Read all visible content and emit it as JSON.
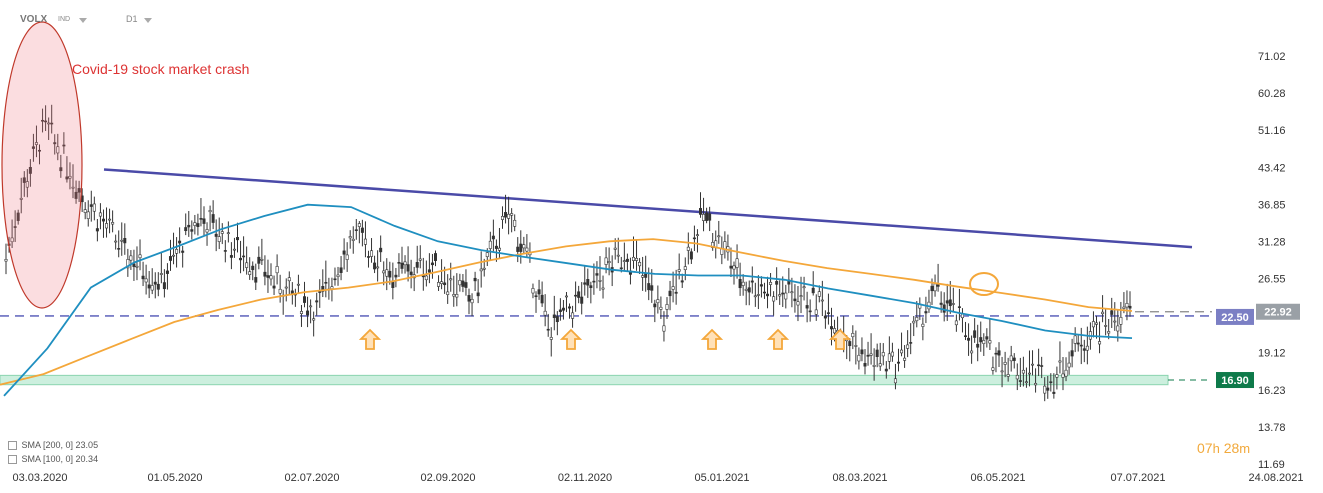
{
  "header": {
    "symbol": "VOLX",
    "type": "IND",
    "timeframe": "D1"
  },
  "legend": [
    {
      "label": "SMA [200, 0] 23.05",
      "color": "#f4a73a"
    },
    {
      "label": "SMA [100, 0] 20.34",
      "color": "#1f8fc0"
    }
  ],
  "timer": {
    "hours": "07",
    "h_unit": "h",
    "minutes": "28",
    "m_unit": "m"
  },
  "annotation": {
    "text": "Covid-19 stock market crash"
  },
  "colors": {
    "trendline": "#4a4aa8",
    "sma200": "#f4a73a",
    "sma100": "#1f8fc0",
    "support_zone": "#7fd0a8",
    "candles": "#333333",
    "arrows": "#f4a73a",
    "crash_ellipse": "#c0392b"
  },
  "chart_data": {
    "type": "line",
    "title": "",
    "xlabel": "",
    "ylabel": "",
    "x_ticks": [
      "03.03.2020",
      "01.05.2020",
      "02.07.2020",
      "02.09.2020",
      "02.11.2020",
      "05.01.2021",
      "08.03.2021",
      "06.05.2021",
      "07.07.2021",
      "24.08.2021"
    ],
    "y_ticks": [
      "71.02",
      "60.28",
      "51.16",
      "43.42",
      "36.85",
      "31.28",
      "26.55",
      "19.12",
      "16.23",
      "13.78",
      "11.69"
    ],
    "y_scale": "log",
    "ylim": [
      11.69,
      80
    ],
    "price_labels": [
      {
        "value": "22.50",
        "bg": "#7b7fc4",
        "fg": "#ffffff"
      },
      {
        "value": "22.92",
        "bg": "#9aa0a6",
        "fg": "#ffffff"
      },
      {
        "value": "16.90",
        "bg": "#0e7a4a",
        "fg": "#ffffff"
      }
    ],
    "series": [
      {
        "name": "SMA [200, 0]",
        "values": [
          16.6,
          17.4,
          18.8,
          20.3,
          21.9,
          23.1,
          24.2,
          25.0,
          25.5,
          26.2,
          27.3,
          28.5,
          29.6,
          30.6,
          31.3,
          31.6,
          31.0,
          29.8,
          28.7,
          27.8,
          27.1,
          26.4,
          25.6,
          24.9,
          24.2,
          23.4,
          23.0
        ]
      },
      {
        "name": "SMA [100, 0]",
        "values": [
          15.8,
          19.5,
          25.5,
          28.5,
          30.6,
          33.0,
          35.0,
          36.8,
          36.4,
          33.5,
          31.3,
          30.1,
          29.2,
          28.4,
          27.6,
          27.1,
          26.9,
          26.9,
          26.4,
          25.4,
          24.6,
          23.8,
          22.8,
          22.0,
          21.1,
          20.6,
          20.4
        ]
      },
      {
        "name": "",
        "values": [
          29,
          52,
          38,
          30,
          26,
          35,
          30,
          26,
          23,
          32,
          27,
          28,
          24,
          35,
          21,
          25,
          30,
          22,
          35,
          26,
          25,
          24,
          19,
          18,
          25,
          20,
          18,
          17,
          21,
          23
        ]
      }
    ],
    "dates_sma": [
      "02.2020",
      "03.2020",
      "04.2020",
      "05.2020",
      "06.2020",
      "07.2020",
      "08.2020",
      "09.2020",
      "10.2020",
      "11.2020",
      "12.2020",
      "01.2021",
      "02.2021",
      "03.2021",
      "04.2021",
      "05.2021",
      "06.2021",
      "07.2021",
      "08.2021"
    ],
    "trendline": {
      "start": [
        "03.2020",
        43.0
      ],
      "end": [
        "08.2021",
        30.5
      ]
    },
    "support_level": 22.5,
    "support_zone": [
      16.6,
      17.3
    ],
    "arrows_at": [
      "08.2020",
      "11.2020",
      "01.2021",
      "02.2021",
      "03.2021"
    ]
  }
}
